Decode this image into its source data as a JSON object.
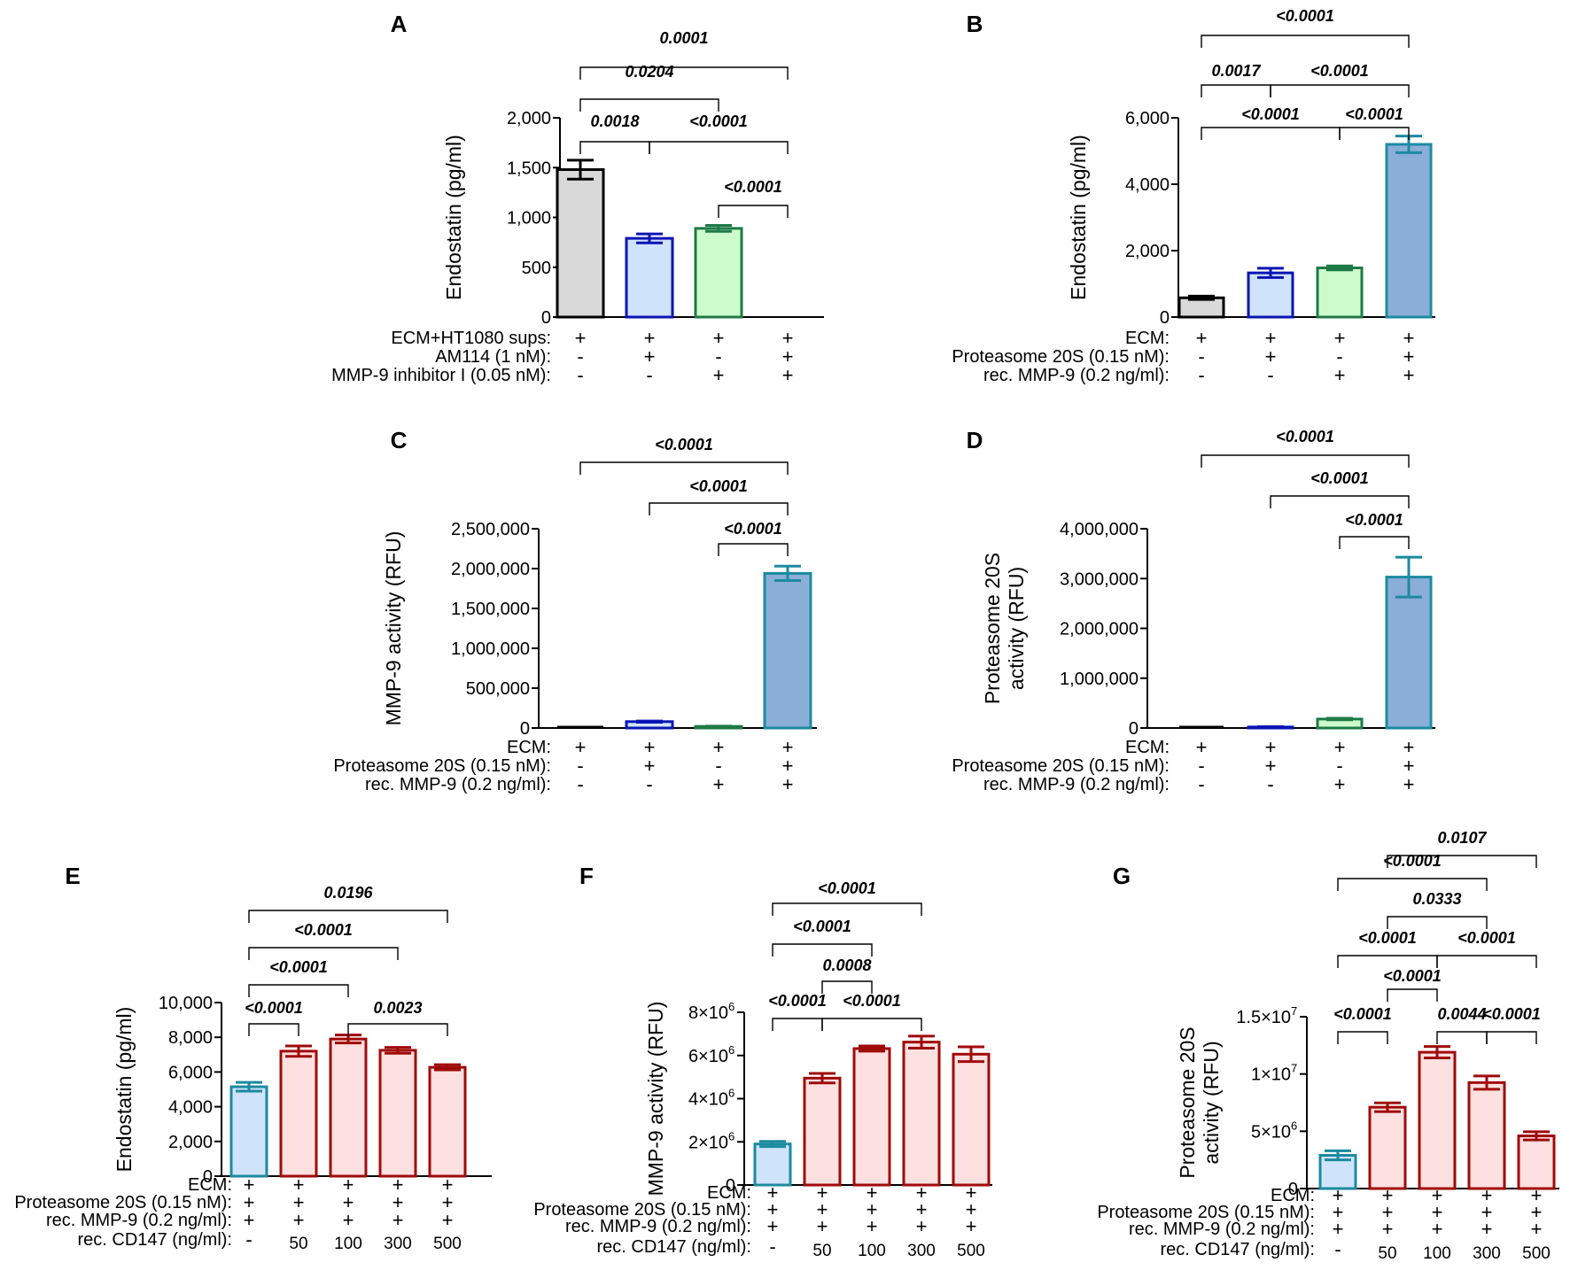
{
  "figure": {
    "description_panels": [
      "A",
      "B",
      "C",
      "D",
      "E",
      "F",
      "G"
    ]
  },
  "chart_data": [
    {
      "panel": "A",
      "type": "bar",
      "ylabel": "Endostatin (pg/ml)",
      "ylim": [
        0,
        2000
      ],
      "yticks": [
        0,
        500,
        1000,
        1500,
        2000
      ],
      "ytick_labels": [
        "0",
        "500",
        "1,000",
        "1,500",
        "2,000"
      ],
      "values": [
        1480,
        790,
        890,
        0
      ],
      "errors": [
        95,
        45,
        30,
        0
      ],
      "colors": [
        {
          "fill": "#d9d9d9",
          "stroke": "#000000"
        },
        {
          "fill": "#cfe3fb",
          "stroke": "#0a14b4"
        },
        {
          "fill": "#ccfccc",
          "stroke": "#1e7a46"
        },
        {
          "fill": "#ffffff",
          "stroke": "#ffffff"
        }
      ],
      "rows": [
        {
          "label": "ECM+HT1080 sups:",
          "values": [
            "+",
            "+",
            "+",
            "+"
          ]
        },
        {
          "label": "AM114 (1 nM):",
          "values": [
            "-",
            "+",
            "-",
            "+"
          ]
        },
        {
          "label": "MMP-9 inhibitor I (0.05 nM):",
          "values": [
            "-",
            "-",
            "+",
            "+"
          ]
        }
      ],
      "comparisons": [
        {
          "from": 0,
          "to": 3,
          "label": "0.0001"
        },
        {
          "from": 0,
          "to": 2,
          "label": "0.0204"
        },
        {
          "from": 0,
          "to": 1,
          "label": "0.0018"
        },
        {
          "from": 1,
          "to": 3,
          "label": "<0.0001"
        },
        {
          "from": 2,
          "to": 3,
          "label": "<0.0001"
        }
      ]
    },
    {
      "panel": "B",
      "type": "bar",
      "ylabel": "Endostatin (pg/ml)",
      "ylim": [
        0,
        6000
      ],
      "yticks": [
        0,
        2000,
        4000,
        6000
      ],
      "ytick_labels": [
        "0",
        "2,000",
        "4,000",
        "6,000"
      ],
      "values": [
        580,
        1330,
        1480,
        5200
      ],
      "errors": [
        50,
        140,
        60,
        250
      ],
      "colors": [
        {
          "fill": "#d9d9d9",
          "stroke": "#000000"
        },
        {
          "fill": "#cfe3fb",
          "stroke": "#0a14b4"
        },
        {
          "fill": "#ccfccc",
          "stroke": "#1e7a46"
        },
        {
          "fill": "#8aaed8",
          "stroke": "#1c8aa0"
        }
      ],
      "rows": [
        {
          "label": "ECM:",
          "values": [
            "+",
            "+",
            "+",
            "+"
          ]
        },
        {
          "label": "Proteasome 20S (0.15 nM):",
          "values": [
            "-",
            "+",
            "-",
            "+"
          ]
        },
        {
          "label": "rec. MMP-9 (0.2 ng/ml):",
          "values": [
            "-",
            "-",
            "+",
            "+"
          ]
        }
      ],
      "comparisons": [
        {
          "from": 0,
          "to": 3,
          "label": "<0.0001"
        },
        {
          "from": 0,
          "to": 1,
          "label": "0.0017"
        },
        {
          "from": 1,
          "to": 3,
          "label": "<0.0001"
        },
        {
          "from": 0,
          "to": 2,
          "label": "<0.0001"
        },
        {
          "from": 2,
          "to": 3,
          "label": "<0.0001"
        }
      ]
    },
    {
      "panel": "C",
      "type": "bar",
      "ylabel": "MMP-9 activity (RFU)",
      "ylim": [
        0,
        2500000
      ],
      "yticks": [
        0,
        500000,
        1000000,
        1500000,
        2000000,
        2500000
      ],
      "ytick_labels": [
        "0",
        "500,000",
        "1,000,000",
        "1,500,000",
        "2,000,000",
        "2,500,000"
      ],
      "values": [
        0,
        80000,
        20000,
        1940000
      ],
      "errors": [
        0,
        8000,
        4000,
        90000
      ],
      "colors": [
        {
          "fill": "#d9d9d9",
          "stroke": "#000000"
        },
        {
          "fill": "#cfe3fb",
          "stroke": "#0a14b4"
        },
        {
          "fill": "#ccfccc",
          "stroke": "#1e7a46"
        },
        {
          "fill": "#8aaed8",
          "stroke": "#1c8aa0"
        }
      ],
      "rows": [
        {
          "label": "ECM:",
          "values": [
            "+",
            "+",
            "+",
            "+"
          ]
        },
        {
          "label": "Proteasome 20S (0.15 nM):",
          "values": [
            "-",
            "+",
            "-",
            "+"
          ]
        },
        {
          "label": "rec. MMP-9 (0.2 ng/ml):",
          "values": [
            "-",
            "-",
            "+",
            "+"
          ]
        }
      ],
      "comparisons": [
        {
          "from": 0,
          "to": 3,
          "label": "<0.0001"
        },
        {
          "from": 1,
          "to": 3,
          "label": "<0.0001"
        },
        {
          "from": 2,
          "to": 3,
          "label": "<0.0001"
        }
      ]
    },
    {
      "panel": "D",
      "type": "bar",
      "ylabel": [
        "Proteasome 20S",
        "activity (RFU)"
      ],
      "ylim": [
        0,
        4000000
      ],
      "yticks": [
        0,
        1000000,
        2000000,
        3000000,
        4000000
      ],
      "ytick_labels": [
        "0",
        "1,000,000",
        "2,000,000",
        "3,000,000",
        "4,000,000"
      ],
      "values": [
        0,
        20000,
        180000,
        3030000
      ],
      "errors": [
        0,
        6000,
        15000,
        400000
      ],
      "colors": [
        {
          "fill": "#d9d9d9",
          "stroke": "#000000"
        },
        {
          "fill": "#cfe3fb",
          "stroke": "#0a14b4"
        },
        {
          "fill": "#ccfccc",
          "stroke": "#1e7a46"
        },
        {
          "fill": "#8aaed8",
          "stroke": "#1c8aa0"
        }
      ],
      "rows": [
        {
          "label": "ECM:",
          "values": [
            "+",
            "+",
            "+",
            "+"
          ]
        },
        {
          "label": "Proteasome 20S (0.15 nM):",
          "values": [
            "-",
            "+",
            "-",
            "+"
          ]
        },
        {
          "label": "rec. MMP-9 (0.2 ng/ml):",
          "values": [
            "-",
            "-",
            "+",
            "+"
          ]
        }
      ],
      "comparisons": [
        {
          "from": 0,
          "to": 3,
          "label": "<0.0001"
        },
        {
          "from": 1,
          "to": 3,
          "label": "<0.0001"
        },
        {
          "from": 2,
          "to": 3,
          "label": "<0.0001"
        }
      ]
    },
    {
      "panel": "E",
      "type": "bar",
      "ylabel": "Endostatin (pg/ml)",
      "ylim": [
        0,
        10000
      ],
      "yticks": [
        0,
        2000,
        4000,
        6000,
        8000,
        10000
      ],
      "ytick_labels": [
        "0",
        "2,000",
        "4,000",
        "6,000",
        "8,000",
        "10,000"
      ],
      "values": [
        5150,
        7200,
        7900,
        7250,
        6270
      ],
      "errors": [
        250,
        300,
        230,
        170,
        150
      ],
      "colors": [
        {
          "fill": "#cfe3fb",
          "stroke": "#1c8aa0"
        },
        {
          "fill": "#fde0e0",
          "stroke": "#a00a0a"
        },
        {
          "fill": "#fde0e0",
          "stroke": "#a00a0a"
        },
        {
          "fill": "#fde0e0",
          "stroke": "#a00a0a"
        },
        {
          "fill": "#fde0e0",
          "stroke": "#a00a0a"
        }
      ],
      "rows": [
        {
          "label": "ECM:",
          "values": [
            "+",
            "+",
            "+",
            "+",
            "+"
          ]
        },
        {
          "label": "Proteasome 20S (0.15 nM):",
          "values": [
            "+",
            "+",
            "+",
            "+",
            "+"
          ]
        },
        {
          "label": "rec. MMP-9 (0.2 ng/ml):",
          "values": [
            "+",
            "+",
            "+",
            "+",
            "+"
          ]
        },
        {
          "label": "rec. CD147 (ng/ml):",
          "values": [
            "-",
            "50",
            "100",
            "300",
            "500"
          ]
        }
      ],
      "comparisons": [
        {
          "from": 0,
          "to": 4,
          "label": "0.0196"
        },
        {
          "from": 0,
          "to": 3,
          "label": "<0.0001"
        },
        {
          "from": 0,
          "to": 2,
          "label": "<0.0001"
        },
        {
          "from": 0,
          "to": 1,
          "label": "<0.0001"
        },
        {
          "from": 2,
          "to": 4,
          "label": "0.0023"
        }
      ]
    },
    {
      "panel": "F",
      "type": "bar",
      "ylabel": "MMP-9 activity (RFU)",
      "ylim": [
        0,
        8000000
      ],
      "yticks": [
        0,
        2000000,
        4000000,
        6000000,
        8000000
      ],
      "ytick_labels": [
        "0",
        "2×10",
        "4×10",
        "6×10",
        "8×10"
      ],
      "ytick_sup": "6",
      "values": [
        1900000,
        4950000,
        6320000,
        6620000,
        6060000
      ],
      "errors": [
        120000,
        220000,
        120000,
        280000,
        340000
      ],
      "colors": [
        {
          "fill": "#cfe3fb",
          "stroke": "#1c8aa0"
        },
        {
          "fill": "#fde0e0",
          "stroke": "#a00a0a"
        },
        {
          "fill": "#fde0e0",
          "stroke": "#a00a0a"
        },
        {
          "fill": "#fde0e0",
          "stroke": "#a00a0a"
        },
        {
          "fill": "#fde0e0",
          "stroke": "#a00a0a"
        }
      ],
      "rows": [
        {
          "label": "ECM:",
          "values": [
            "+",
            "+",
            "+",
            "+",
            "+"
          ]
        },
        {
          "label": "Proteasome 20S (0.15 nM):",
          "values": [
            "+",
            "+",
            "+",
            "+",
            "+"
          ]
        },
        {
          "label": "rec. MMP-9 (0.2 ng/ml):",
          "values": [
            "+",
            "+",
            "+",
            "+",
            "+"
          ]
        },
        {
          "label": "rec. CD147 (ng/ml):",
          "values": [
            "-",
            "50",
            "100",
            "300",
            "500"
          ]
        }
      ],
      "comparisons": [
        {
          "from": 0,
          "to": 3,
          "label": "<0.0001"
        },
        {
          "from": 0,
          "to": 2,
          "label": "<0.0001"
        },
        {
          "from": 1,
          "to": 2,
          "label": "0.0008"
        },
        {
          "from": 0,
          "to": 1,
          "label": "<0.0001"
        },
        {
          "from": 1,
          "to": 3,
          "label": "<0.0001"
        }
      ]
    },
    {
      "panel": "G",
      "type": "bar",
      "ylabel": [
        "Proteasome 20S",
        "activity (RFU)"
      ],
      "ylim": [
        0,
        15000000
      ],
      "yticks": [
        0,
        5000000,
        10000000,
        15000000
      ],
      "ytick_labels": [
        "0",
        "5×10",
        "1×10",
        "1.5×10"
      ],
      "ytick_sups": [
        "",
        "6",
        "7",
        "7"
      ],
      "values": [
        2900000,
        7100000,
        11900000,
        9250000,
        4600000
      ],
      "errors": [
        400000,
        380000,
        500000,
        580000,
        360000
      ],
      "colors": [
        {
          "fill": "#cfe3fb",
          "stroke": "#1c8aa0"
        },
        {
          "fill": "#fde0e0",
          "stroke": "#a00a0a"
        },
        {
          "fill": "#fde0e0",
          "stroke": "#a00a0a"
        },
        {
          "fill": "#fde0e0",
          "stroke": "#a00a0a"
        },
        {
          "fill": "#fde0e0",
          "stroke": "#a00a0a"
        }
      ],
      "rows": [
        {
          "label": "ECM:",
          "values": [
            "+",
            "+",
            "+",
            "+",
            "+"
          ]
        },
        {
          "label": "Proteasome 20S (0.15 nM):",
          "values": [
            "+",
            "+",
            "+",
            "+",
            "+"
          ]
        },
        {
          "label": "rec. MMP-9 (0.2 ng/ml):",
          "values": [
            "+",
            "+",
            "+",
            "+",
            "+"
          ]
        },
        {
          "label": "rec. CD147 (ng/ml):",
          "values": [
            "-",
            "50",
            "100",
            "300",
            "500"
          ]
        }
      ],
      "comparisons": [
        {
          "from": 1,
          "to": 4,
          "label": "0.0107"
        },
        {
          "from": 0,
          "to": 3,
          "label": "<0.0001"
        },
        {
          "from": 1,
          "to": 3,
          "label": "0.0333"
        },
        {
          "from": 0,
          "to": 2,
          "label": "<0.0001"
        },
        {
          "from": 2,
          "to": 4,
          "label": "<0.0001"
        },
        {
          "from": 1,
          "to": 2,
          "label": "<0.0001"
        },
        {
          "from": 0,
          "to": 1,
          "label": "<0.0001"
        },
        {
          "from": 2,
          "to": 3,
          "label": "0.0044"
        },
        {
          "from": 3,
          "to": 4,
          "label": "<0.0001"
        }
      ]
    }
  ]
}
